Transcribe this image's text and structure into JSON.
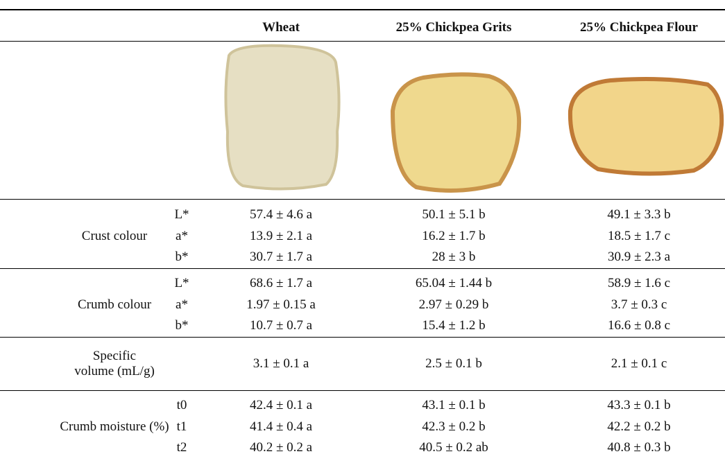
{
  "header": {
    "columns": [
      "Wheat",
      "25% Chickpea Grits",
      "25% Chickpea Flour"
    ]
  },
  "groups": [
    {
      "label": "Crust colour",
      "rows": [
        {
          "param": "L*",
          "values": [
            "57.4 ± 4.6 a",
            "50.1 ± 5.1 b",
            "49.1 ± 3.3 b"
          ]
        },
        {
          "param": "a*",
          "values": [
            "13.9 ± 2.1 a",
            "16.2 ± 1.7 b",
            "18.5 ± 1.7 c"
          ]
        },
        {
          "param": "b*",
          "values": [
            "30.7 ± 1.7 a",
            "28 ± 3 b",
            "30.9 ± 2.3 a"
          ]
        }
      ]
    },
    {
      "label": "Crumb colour",
      "rows": [
        {
          "param": "L*",
          "values": [
            "68.6 ± 1.7 a",
            "65.04 ± 1.44 b",
            "58.9 ± 1.6 c"
          ]
        },
        {
          "param": "a*",
          "values": [
            "1.97 ± 0.15 a",
            "2.97 ± 0.29 b",
            "3.7 ± 0.3 c"
          ]
        },
        {
          "param": "b*",
          "values": [
            "10.7 ± 0.7 a",
            "15.4 ± 1.2 b",
            "16.6 ± 0.8 c"
          ]
        }
      ]
    },
    {
      "label": "Specific volume (mL/g)",
      "rows": [
        {
          "values": [
            "3.1 ± 0.1 a",
            "2.5 ± 0.1 b",
            "2.1 ± 0.1 c"
          ]
        }
      ]
    },
    {
      "label": "Crumb moisture (%)",
      "rows": [
        {
          "param": "t0",
          "values": [
            "42.4 ± 0.1 a",
            "43.1 ± 0.1 b",
            "43.3 ± 0.1 b"
          ]
        },
        {
          "param": "t1",
          "values": [
            "41.4 ± 0.4 a",
            "42.3 ± 0.2 b",
            "42.2 ± 0.2 b"
          ]
        },
        {
          "param": "t2",
          "values": [
            "40.2 ± 0.2 a",
            "40.5 ± 0.2 ab",
            "40.8 ± 0.3 b"
          ]
        }
      ]
    }
  ]
}
